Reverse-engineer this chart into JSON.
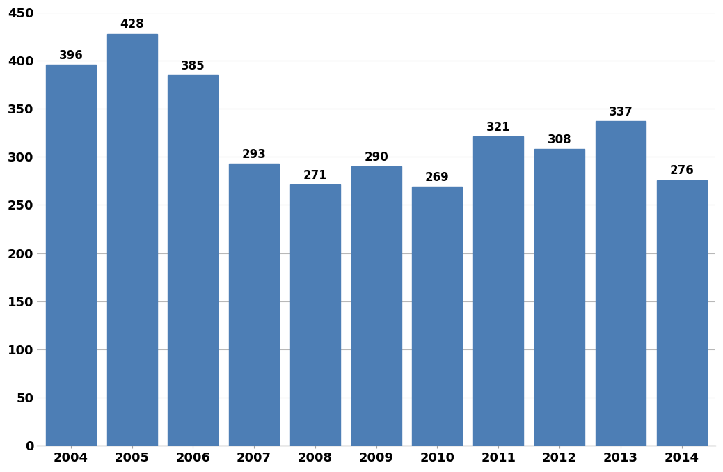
{
  "years": [
    "2004",
    "2005",
    "2006",
    "2007",
    "2008",
    "2009",
    "2010",
    "2011",
    "2012",
    "2013",
    "2014"
  ],
  "values": [
    396,
    428,
    385,
    293,
    271,
    290,
    269,
    321,
    308,
    337,
    276
  ],
  "bar_color": "#4d7eb5",
  "ylim": [
    0,
    450
  ],
  "yticks": [
    0,
    50,
    100,
    150,
    200,
    250,
    300,
    350,
    400,
    450
  ],
  "grid_color": "#b8b8b8",
  "tick_fontsize": 13,
  "value_label_fontsize": 12,
  "background_color": "#ffffff",
  "bar_width": 0.82
}
